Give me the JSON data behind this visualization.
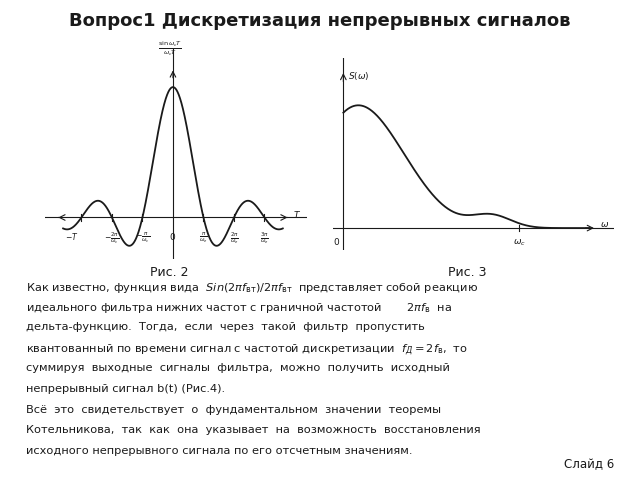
{
  "title": "Вопрос1 Дискретизация непрерывных сигналов",
  "title_fontsize": 13,
  "slide_label": "Слайд 6",
  "fig2_label": "Рис. 2",
  "fig3_label": "Рис. 3",
  "background_color": "#ffffff",
  "text_color": "#1a1a1a",
  "plot_color": "#1a1a1a",
  "fig_width": 6.4,
  "fig_height": 4.8,
  "para_lines": [
    [
      "Как известно, функция вида  ",
      "italic",
      "$Sin(2\\pi f_{\\rm вт})/2\\pi f_{\\rm вт}$",
      "  представляет собой реакцию"
    ],
    [
      "идеального фильтра нижних частот с граничной частотой       $2\\pi f_{\\rm в}$  на"
    ],
    [
      "дельта-функцию.  Тогда,  если  через  такой  фильтр  пропустить"
    ],
    [
      "квантованный по времени сигнал с частотой дискретизации  $f_Д = 2f_{\\rm в}$,  то"
    ],
    [
      "суммируя  выходные  сигналы  фильтра,  можно  получить  исходный"
    ],
    [
      "непрерывный сигнал b(t) (Рис.4)."
    ],
    [
      "Всё  это  свидетельствует  о  фундаментальном  значении  теоремы"
    ],
    [
      "Котельникова,  так  как  она  указывает  на  возможность  восстановления"
    ],
    [
      "исходного непрерывного сигнала по его отсчетным значениям."
    ]
  ]
}
